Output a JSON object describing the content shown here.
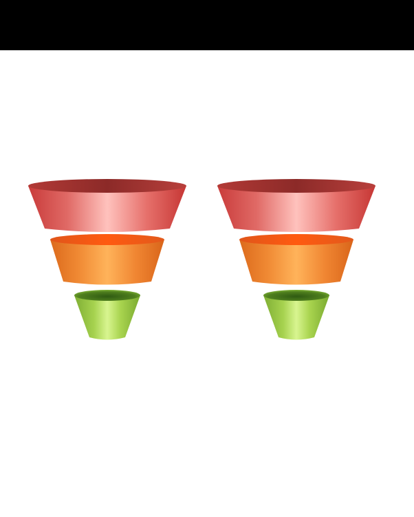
{
  "header_bar": {
    "color": "#000000"
  },
  "diagram": {
    "type": "funnel",
    "funnel_count": 2,
    "tiers": [
      {
        "name": "top-tier",
        "color": "#e35a57"
      },
      {
        "name": "middle-tier",
        "color": "#f0842f"
      },
      {
        "name": "bottom-tier",
        "color": "#9dcc4a"
      }
    ]
  }
}
